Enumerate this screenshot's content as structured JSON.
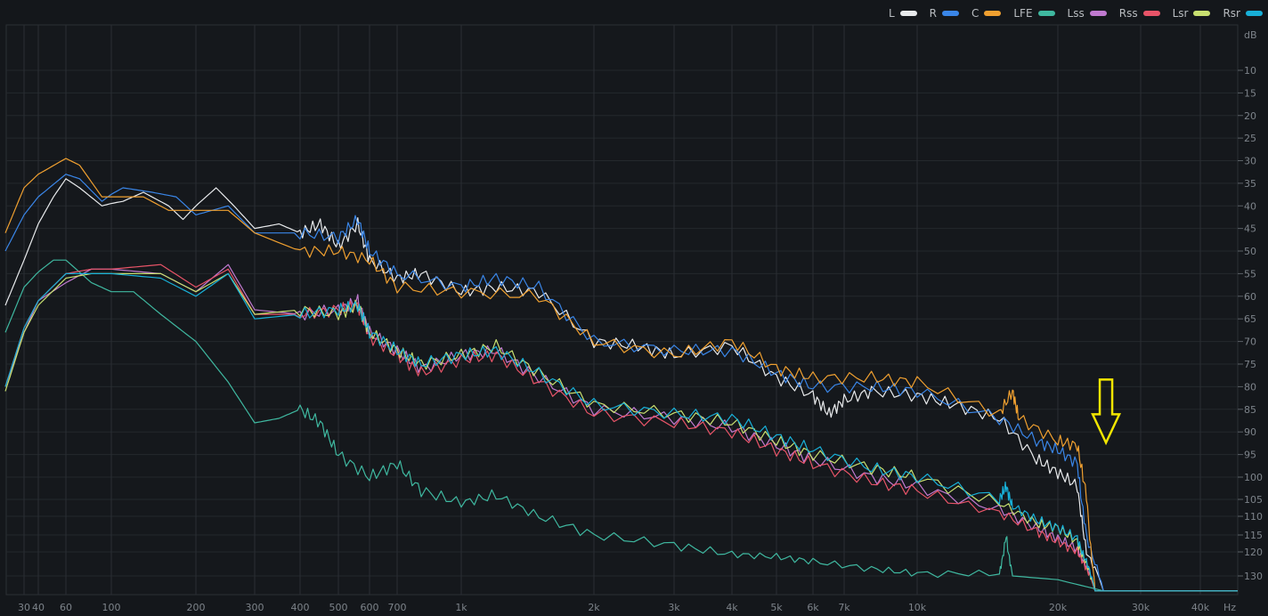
{
  "chart_data": {
    "type": "line",
    "title": "",
    "xlabel": "Hz",
    "ylabel": "dB",
    "xscale": "log",
    "xlim": [
      20,
      48000
    ],
    "ylim": [
      0,
      135
    ],
    "y_inverted": true,
    "grid": true,
    "legend_position": "top-right",
    "x_ticks": [
      {
        "v": 30,
        "label": "30"
      },
      {
        "v": 40,
        "label": "40"
      },
      {
        "v": 60,
        "label": "60"
      },
      {
        "v": 100,
        "label": "100"
      },
      {
        "v": 200,
        "label": "200"
      },
      {
        "v": 300,
        "label": "300"
      },
      {
        "v": 400,
        "label": "400"
      },
      {
        "v": 500,
        "label": "500"
      },
      {
        "v": 600,
        "label": "600"
      },
      {
        "v": 700,
        "label": "700"
      },
      {
        "v": 1000,
        "label": "1k"
      },
      {
        "v": 2000,
        "label": "2k"
      },
      {
        "v": 3000,
        "label": "3k"
      },
      {
        "v": 4000,
        "label": "4k"
      },
      {
        "v": 5000,
        "label": "5k"
      },
      {
        "v": 6000,
        "label": "6k"
      },
      {
        "v": 7000,
        "label": "7k"
      },
      {
        "v": 10000,
        "label": "10k"
      },
      {
        "v": 20000,
        "label": "20k"
      },
      {
        "v": 30000,
        "label": "30k"
      },
      {
        "v": 40000,
        "label": "40k"
      }
    ],
    "y_ticks": [
      10,
      15,
      20,
      25,
      30,
      35,
      40,
      45,
      50,
      55,
      60,
      65,
      70,
      75,
      80,
      85,
      90,
      95,
      100,
      105,
      110,
      115,
      120,
      130
    ],
    "series": [
      {
        "name": "L",
        "color": "#e8eaec",
        "points": [
          [
            20,
            62
          ],
          [
            30,
            52
          ],
          [
            40,
            44
          ],
          [
            50,
            38
          ],
          [
            60,
            34
          ],
          [
            70,
            36
          ],
          [
            90,
            40
          ],
          [
            110,
            39
          ],
          [
            130,
            37
          ],
          [
            160,
            40
          ],
          [
            180,
            43
          ],
          [
            230,
            36
          ],
          [
            260,
            40
          ],
          [
            300,
            45
          ],
          [
            350,
            44
          ],
          [
            400,
            46
          ],
          [
            450,
            44
          ],
          [
            500,
            49
          ],
          [
            560,
            44
          ],
          [
            600,
            52
          ],
          [
            700,
            56
          ],
          [
            800,
            55
          ],
          [
            1000,
            59
          ],
          [
            1200,
            58
          ],
          [
            1500,
            59
          ],
          [
            2000,
            70
          ],
          [
            2500,
            71
          ],
          [
            3000,
            73
          ],
          [
            4000,
            71
          ],
          [
            5000,
            78
          ],
          [
            6000,
            82
          ],
          [
            6500,
            86
          ],
          [
            7000,
            83
          ],
          [
            8000,
            81
          ],
          [
            10000,
            82
          ],
          [
            12000,
            84
          ],
          [
            15000,
            87
          ],
          [
            18000,
            96
          ],
          [
            20000,
            99
          ],
          [
            22000,
            102
          ],
          [
            23000,
            120
          ],
          [
            25000,
            134
          ],
          [
            48000,
            134
          ]
        ]
      },
      {
        "name": "R",
        "color": "#3a86e8",
        "points": [
          [
            20,
            50
          ],
          [
            30,
            42
          ],
          [
            40,
            38
          ],
          [
            60,
            33
          ],
          [
            70,
            34
          ],
          [
            90,
            39
          ],
          [
            110,
            36
          ],
          [
            140,
            37
          ],
          [
            170,
            38
          ],
          [
            200,
            42
          ],
          [
            250,
            40
          ],
          [
            300,
            46
          ],
          [
            400,
            46
          ],
          [
            500,
            47
          ],
          [
            560,
            43
          ],
          [
            600,
            50
          ],
          [
            700,
            55
          ],
          [
            1000,
            58
          ],
          [
            1200,
            56
          ],
          [
            1500,
            58
          ],
          [
            2000,
            70
          ],
          [
            3000,
            72
          ],
          [
            4000,
            72
          ],
          [
            5000,
            77
          ],
          [
            6000,
            80
          ],
          [
            8000,
            80
          ],
          [
            10000,
            81
          ],
          [
            15000,
            87
          ],
          [
            18000,
            92
          ],
          [
            20000,
            94
          ],
          [
            22000,
            97
          ],
          [
            23000,
            115
          ],
          [
            25000,
            134
          ],
          [
            48000,
            134
          ]
        ]
      },
      {
        "name": "C",
        "color": "#f0a030",
        "points": [
          [
            20,
            46
          ],
          [
            30,
            36
          ],
          [
            40,
            33
          ],
          [
            60,
            29.5
          ],
          [
            70,
            31
          ],
          [
            90,
            38
          ],
          [
            130,
            38
          ],
          [
            160,
            41
          ],
          [
            200,
            41
          ],
          [
            250,
            41
          ],
          [
            300,
            46
          ],
          [
            400,
            50
          ],
          [
            500,
            50
          ],
          [
            600,
            52
          ],
          [
            700,
            58
          ],
          [
            1000,
            59
          ],
          [
            1500,
            60
          ],
          [
            2000,
            70
          ],
          [
            3000,
            73
          ],
          [
            4000,
            70
          ],
          [
            5000,
            76
          ],
          [
            6000,
            78
          ],
          [
            8000,
            78
          ],
          [
            10000,
            79
          ],
          [
            15000,
            86
          ],
          [
            16000,
            81
          ],
          [
            16500,
            87
          ],
          [
            20000,
            92
          ],
          [
            22000,
            93
          ],
          [
            23000,
            104
          ],
          [
            24000,
            134
          ],
          [
            48000,
            134
          ]
        ]
      },
      {
        "name": "LFE",
        "color": "#3fb8a0",
        "points": [
          [
            20,
            68
          ],
          [
            30,
            58
          ],
          [
            50,
            52
          ],
          [
            60,
            52
          ],
          [
            80,
            57
          ],
          [
            100,
            59
          ],
          [
            120,
            59
          ],
          [
            150,
            64
          ],
          [
            200,
            70
          ],
          [
            250,
            79
          ],
          [
            300,
            88
          ],
          [
            350,
            87
          ],
          [
            400,
            85
          ],
          [
            450,
            88
          ],
          [
            500,
            95
          ],
          [
            600,
            100
          ],
          [
            700,
            97
          ],
          [
            800,
            103
          ],
          [
            1000,
            106
          ],
          [
            1200,
            104
          ],
          [
            1500,
            110
          ],
          [
            2000,
            115
          ],
          [
            3000,
            118
          ],
          [
            4000,
            121
          ],
          [
            5000,
            122
          ],
          [
            6000,
            124
          ],
          [
            8000,
            127
          ],
          [
            10000,
            129
          ],
          [
            15000,
            129
          ],
          [
            15500,
            115
          ],
          [
            16000,
            130
          ],
          [
            20000,
            131
          ],
          [
            25000,
            134
          ],
          [
            48000,
            134
          ]
        ]
      },
      {
        "name": "Lss",
        "color": "#c07ad0",
        "points": [
          [
            20,
            80
          ],
          [
            30,
            68
          ],
          [
            40,
            61
          ],
          [
            60,
            57
          ],
          [
            80,
            54
          ],
          [
            100,
            54
          ],
          [
            150,
            55
          ],
          [
            200,
            59
          ],
          [
            250,
            53
          ],
          [
            300,
            63
          ],
          [
            400,
            64
          ],
          [
            500,
            63
          ],
          [
            560,
            61
          ],
          [
            600,
            68
          ],
          [
            700,
            72
          ],
          [
            800,
            76
          ],
          [
            1000,
            73
          ],
          [
            1200,
            72
          ],
          [
            1500,
            78
          ],
          [
            2000,
            85
          ],
          [
            3000,
            87
          ],
          [
            4000,
            89
          ],
          [
            5000,
            93
          ],
          [
            6000,
            96
          ],
          [
            8000,
            100
          ],
          [
            10000,
            102
          ],
          [
            15000,
            108
          ],
          [
            18000,
            113
          ],
          [
            20000,
            116
          ],
          [
            22000,
            119
          ],
          [
            23000,
            126
          ],
          [
            24000,
            134
          ],
          [
            48000,
            134
          ]
        ]
      },
      {
        "name": "Rss",
        "color": "#e85468",
        "points": [
          [
            20,
            80
          ],
          [
            30,
            67
          ],
          [
            40,
            61
          ],
          [
            60,
            55
          ],
          [
            80,
            54
          ],
          [
            100,
            54
          ],
          [
            150,
            53
          ],
          [
            200,
            58
          ],
          [
            250,
            54
          ],
          [
            300,
            64
          ],
          [
            400,
            64
          ],
          [
            500,
            63
          ],
          [
            560,
            62
          ],
          [
            600,
            69
          ],
          [
            700,
            73
          ],
          [
            800,
            77
          ],
          [
            1000,
            74
          ],
          [
            1200,
            73
          ],
          [
            1500,
            79
          ],
          [
            2000,
            86
          ],
          [
            3000,
            88
          ],
          [
            4000,
            90
          ],
          [
            5000,
            94
          ],
          [
            6000,
            97
          ],
          [
            8000,
            101
          ],
          [
            10000,
            103
          ],
          [
            15000,
            109
          ],
          [
            18000,
            114
          ],
          [
            20000,
            117
          ],
          [
            22000,
            120
          ],
          [
            23000,
            127
          ],
          [
            24000,
            134
          ],
          [
            48000,
            134
          ]
        ]
      },
      {
        "name": "Lsr",
        "color": "#c8e070",
        "points": [
          [
            20,
            81
          ],
          [
            30,
            68
          ],
          [
            40,
            62
          ],
          [
            60,
            56
          ],
          [
            80,
            55
          ],
          [
            100,
            55
          ],
          [
            150,
            55
          ],
          [
            200,
            59
          ],
          [
            250,
            55
          ],
          [
            300,
            64
          ],
          [
            400,
            63
          ],
          [
            500,
            64
          ],
          [
            560,
            62
          ],
          [
            600,
            68
          ],
          [
            700,
            72
          ],
          [
            800,
            75
          ],
          [
            1000,
            73
          ],
          [
            1200,
            71
          ],
          [
            1500,
            77
          ],
          [
            2000,
            84
          ],
          [
            3000,
            86
          ],
          [
            4000,
            88
          ],
          [
            5000,
            92
          ],
          [
            6000,
            95
          ],
          [
            8000,
            98
          ],
          [
            10000,
            100
          ],
          [
            15000,
            106
          ],
          [
            18000,
            112
          ],
          [
            20000,
            113
          ],
          [
            22000,
            117
          ],
          [
            23000,
            125
          ],
          [
            24000,
            134
          ],
          [
            48000,
            134
          ]
        ]
      },
      {
        "name": "Rsr",
        "color": "#18b0d8",
        "points": [
          [
            20,
            80
          ],
          [
            30,
            67
          ],
          [
            40,
            61
          ],
          [
            60,
            55
          ],
          [
            80,
            55
          ],
          [
            100,
            55
          ],
          [
            150,
            56
          ],
          [
            200,
            60
          ],
          [
            250,
            55
          ],
          [
            300,
            65
          ],
          [
            400,
            64
          ],
          [
            500,
            63
          ],
          [
            560,
            62
          ],
          [
            600,
            68
          ],
          [
            700,
            72
          ],
          [
            800,
            75
          ],
          [
            1000,
            73
          ],
          [
            1200,
            72
          ],
          [
            1500,
            77
          ],
          [
            2000,
            84
          ],
          [
            3000,
            86
          ],
          [
            4000,
            87
          ],
          [
            5000,
            91
          ],
          [
            6000,
            94
          ],
          [
            8000,
            98
          ],
          [
            10000,
            100
          ],
          [
            15000,
            105
          ],
          [
            15500,
            102
          ],
          [
            16000,
            107
          ],
          [
            18000,
            111
          ],
          [
            20000,
            113
          ],
          [
            22000,
            116
          ],
          [
            23000,
            124
          ],
          [
            24000,
            134
          ],
          [
            48000,
            134
          ]
        ]
      }
    ],
    "annotation": {
      "type": "arrow-down",
      "color": "#f2e600",
      "x": 23000,
      "y_from": 80,
      "y_to": 92
    }
  }
}
